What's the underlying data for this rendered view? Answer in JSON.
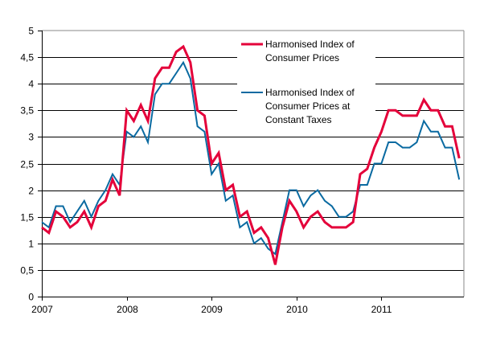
{
  "chart_data": {
    "type": "line",
    "title": "",
    "xlabel": "",
    "ylabel": "",
    "ylim": [
      0,
      5
    ],
    "yticks": [
      "0",
      "0,5",
      "1",
      "1,5",
      "2",
      "2,5",
      "3",
      "3,5",
      "4",
      "4,5",
      "5"
    ],
    "xticks": [
      "2007",
      "2008",
      "2009",
      "2010",
      "2011"
    ],
    "x_start": "2007-01",
    "x_end": "2011-12",
    "frequency": "monthly",
    "grid": true,
    "legend_placement": "top-center",
    "series": [
      {
        "name_lines": [
          "Harmonised Index of",
          "Consumer Prices"
        ],
        "color": "#e4003a",
        "values": [
          1.3,
          1.2,
          1.6,
          1.5,
          1.3,
          1.4,
          1.6,
          1.3,
          1.7,
          1.8,
          2.2,
          1.9,
          3.5,
          3.3,
          3.6,
          3.3,
          4.1,
          4.3,
          4.3,
          4.6,
          4.7,
          4.4,
          3.5,
          3.4,
          2.5,
          2.7,
          2.0,
          2.1,
          1.5,
          1.6,
          1.2,
          1.3,
          1.1,
          0.6,
          1.3,
          1.8,
          1.6,
          1.3,
          1.5,
          1.6,
          1.4,
          1.3,
          1.3,
          1.3,
          1.4,
          2.3,
          2.4,
          2.8,
          3.1,
          3.5,
          3.5,
          3.4,
          3.4,
          3.4,
          3.7,
          3.5,
          3.5,
          3.2,
          3.2,
          2.6
        ]
      },
      {
        "name_lines": [
          "Harmonised Index of",
          "Consumer Prices at",
          "Constant Taxes"
        ],
        "color": "#0a6aa1",
        "values": [
          1.4,
          1.3,
          1.7,
          1.7,
          1.4,
          1.6,
          1.8,
          1.5,
          1.8,
          2.0,
          2.3,
          2.1,
          3.1,
          3.0,
          3.2,
          2.9,
          3.8,
          4.0,
          4.0,
          4.2,
          4.4,
          4.1,
          3.2,
          3.1,
          2.3,
          2.5,
          1.8,
          1.9,
          1.3,
          1.4,
          1.0,
          1.1,
          0.9,
          0.8,
          1.4,
          2.0,
          2.0,
          1.7,
          1.9,
          2.0,
          1.8,
          1.7,
          1.5,
          1.5,
          1.6,
          2.1,
          2.1,
          2.5,
          2.5,
          2.9,
          2.9,
          2.8,
          2.8,
          2.9,
          3.3,
          3.1,
          3.1,
          2.8,
          2.8,
          2.2
        ]
      }
    ]
  }
}
